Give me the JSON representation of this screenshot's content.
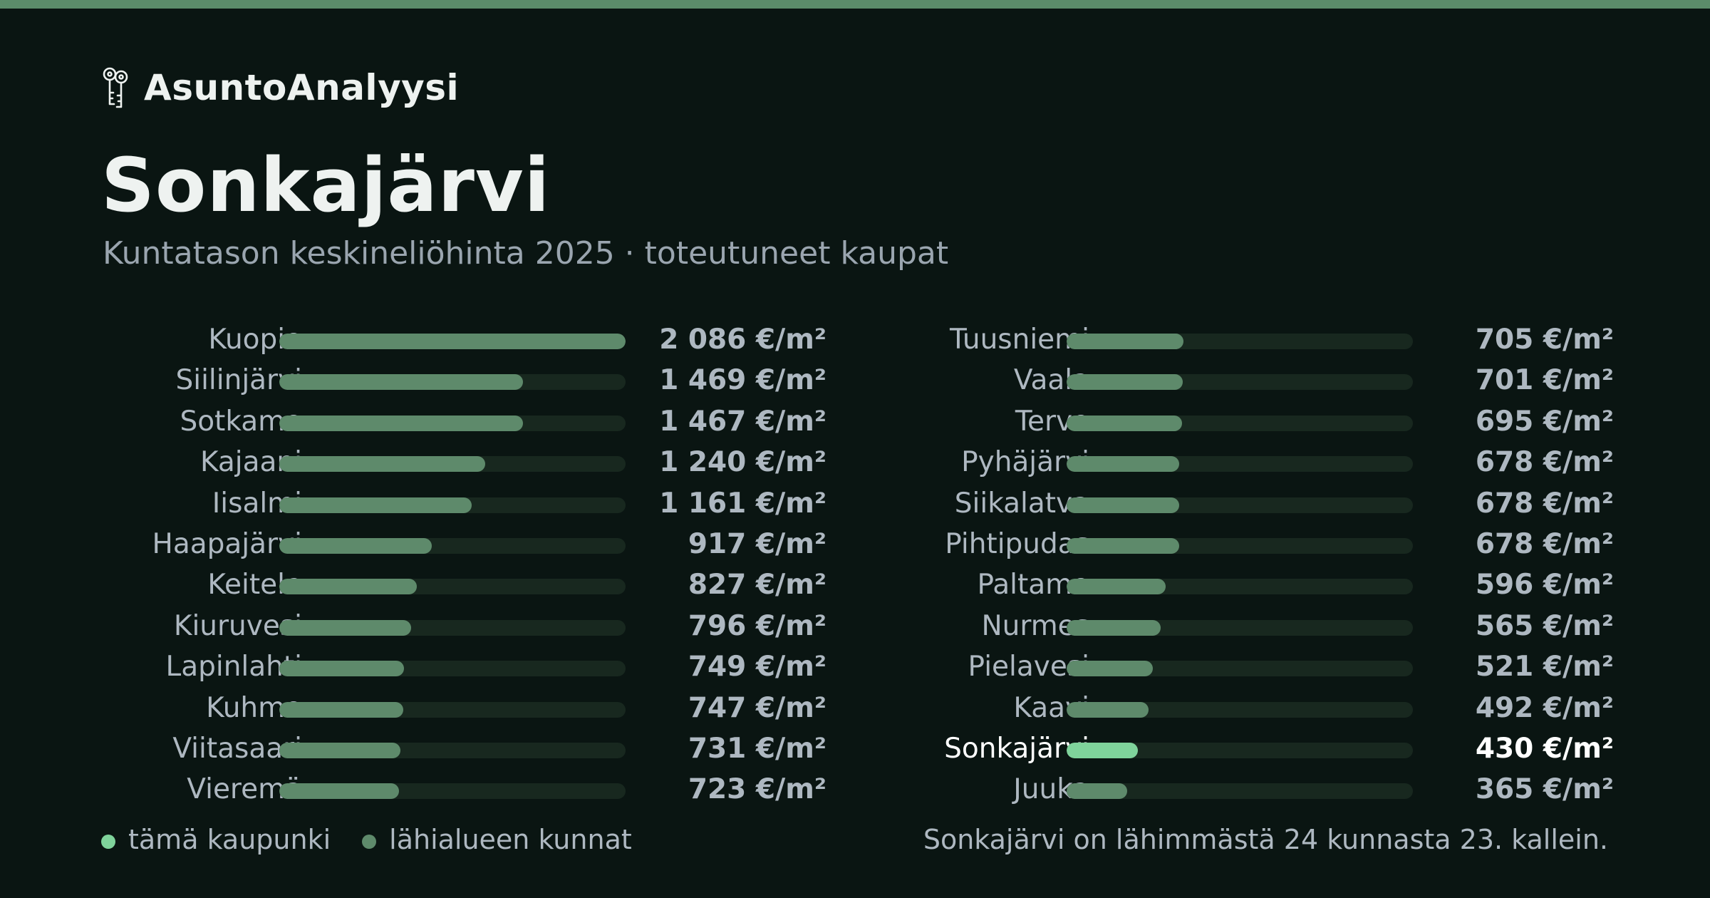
{
  "brand": {
    "name": "AsuntoAnalyysi",
    "icon": "keys-icon"
  },
  "header": {
    "title": "Sonkajärvi",
    "subtitle": "Kuntatason keskineliöhinta 2025 · toteutuneet kaupat"
  },
  "colors": {
    "background": "#0a1512",
    "accent_bar": "#5b8c6a",
    "bar_nearby": "#5e8a6b",
    "bar_highlight": "#7fd39b",
    "track": "#18281f"
  },
  "chart_data": {
    "type": "bar",
    "orientation": "horizontal",
    "unit": "€/m²",
    "xlim": [
      0,
      2086
    ],
    "highlight": "Sonkajärvi",
    "categories": [
      "Kuopio",
      "Siilinjärvi",
      "Sotkamo",
      "Kajaani",
      "Iisalmi",
      "Haapajärvi",
      "Keitele",
      "Kiuruvesi",
      "Lapinlahti",
      "Kuhmo",
      "Viitasaari",
      "Vieremä",
      "Tuusniemi",
      "Vaala",
      "Tervo",
      "Pyhäjärvi",
      "Siikalatva",
      "Pihtipudas",
      "Paltamo",
      "Nurmes",
      "Pielavesi",
      "Kaavi",
      "Sonkajärvi",
      "Juuka"
    ],
    "values": [
      2086,
      1469,
      1467,
      1240,
      1161,
      917,
      827,
      796,
      749,
      747,
      731,
      723,
      705,
      701,
      695,
      678,
      678,
      678,
      596,
      565,
      521,
      492,
      430,
      365
    ],
    "value_labels": [
      "2 086 €/m²",
      "1 469 €/m²",
      "1 467 €/m²",
      "1 240 €/m²",
      "1 161 €/m²",
      "917 €/m²",
      "827 €/m²",
      "796 €/m²",
      "749 €/m²",
      "747 €/m²",
      "731 €/m²",
      "723 €/m²",
      "705 €/m²",
      "701 €/m²",
      "695 €/m²",
      "678 €/m²",
      "678 €/m²",
      "678 €/m²",
      "596 €/m²",
      "565 €/m²",
      "521 €/m²",
      "492 €/m²",
      "430 €/m²",
      "365 €/m²"
    ],
    "legend": [
      {
        "label": "tämä kaupunki",
        "color": "#7fd39b"
      },
      {
        "label": "lähialueen kunnat",
        "color": "#5e8a6b"
      }
    ],
    "legend_position": "bottom-left",
    "note": "Sonkajärvi on lähimmästä 24 kunnasta 23. kallein."
  }
}
